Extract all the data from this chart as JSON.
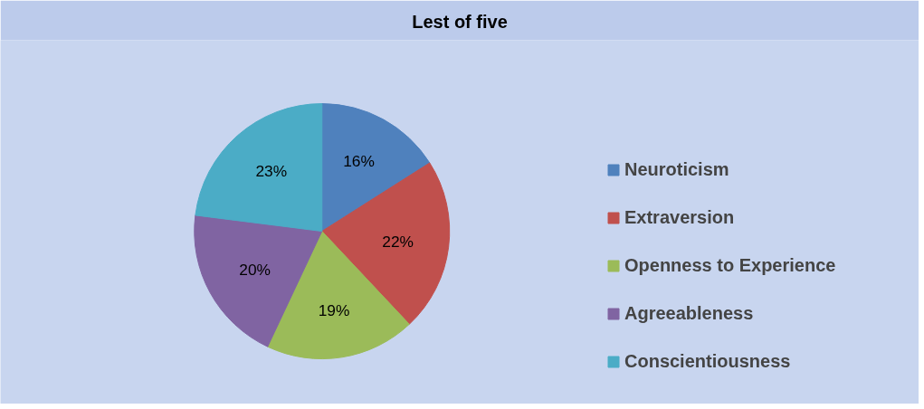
{
  "chart_data": {
    "type": "pie",
    "title": "Lest of five",
    "categories": [
      "Neuroticism",
      "Extraversion",
      "Openness to Experience",
      "Agreeableness",
      "Conscientiousness"
    ],
    "values": [
      16,
      22,
      19,
      20,
      23
    ],
    "colors": [
      "#4f81bd",
      "#c0504d",
      "#9bbb59",
      "#8064a2",
      "#4bacc6"
    ],
    "value_labels": [
      "16%",
      "22%",
      "19%",
      "20%",
      "23%"
    ],
    "legend": "right"
  }
}
